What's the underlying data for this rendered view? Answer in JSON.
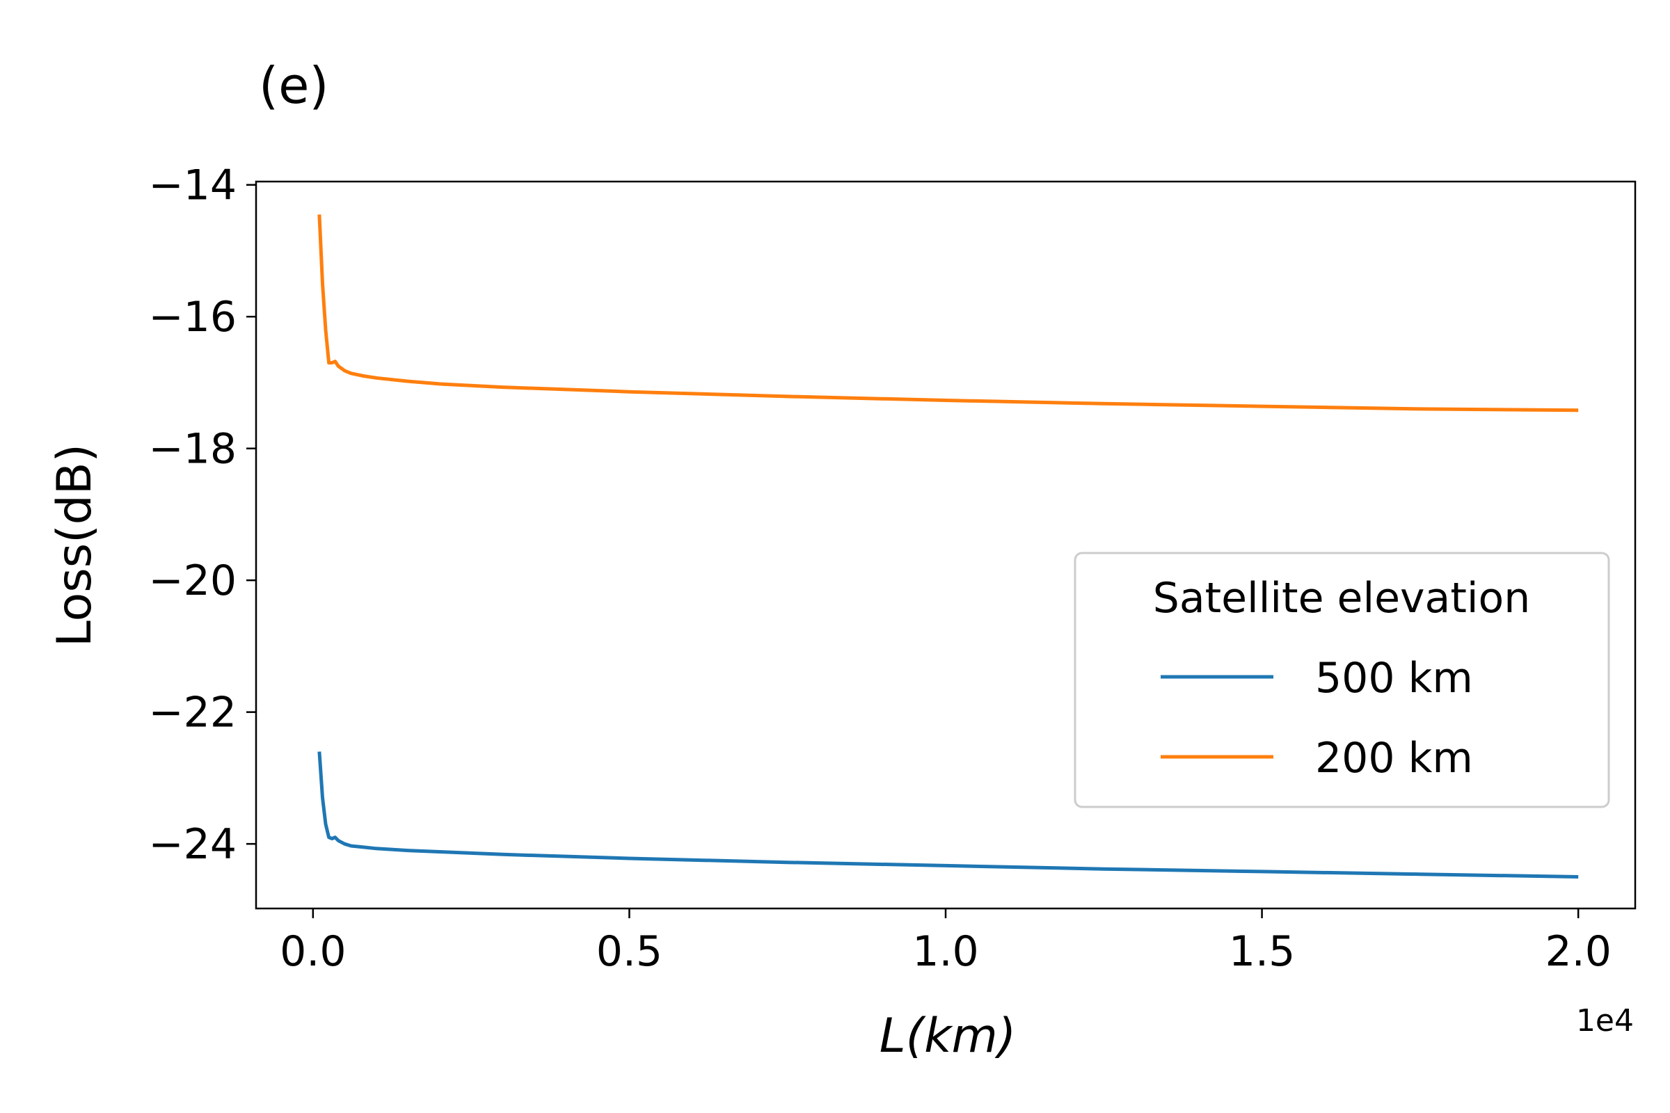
{
  "panel_label": "(e)",
  "chart_data": {
    "type": "line",
    "xlabel": "L(km)",
    "ylabel": "Loss(dB)",
    "x_offset_label": "1e4",
    "xlim": [
      -0.09,
      2.09
    ],
    "ylim": [
      -24.98,
      -13.95
    ],
    "x_ticks": [
      0.0,
      0.5,
      1.0,
      1.5,
      2.0
    ],
    "x_tick_labels": [
      "0.0",
      "0.5",
      "1.0",
      "1.5",
      "2.0"
    ],
    "y_ticks": [
      -14,
      -16,
      -18,
      -20,
      -22,
      -24
    ],
    "y_tick_labels": [
      "−14",
      "−16",
      "−18",
      "−20",
      "−22",
      "−24"
    ],
    "grid": false,
    "legend": {
      "title": "Satellite elevation",
      "location": "center-right"
    },
    "series": [
      {
        "name": "500 km",
        "color": "#1f77b4",
        "x": [
          0.01,
          0.015,
          0.02,
          0.025,
          0.03,
          0.035,
          0.04,
          0.05,
          0.06,
          0.08,
          0.1,
          0.15,
          0.2,
          0.3,
          0.5,
          0.75,
          1.0,
          1.25,
          1.5,
          1.75,
          2.0
        ],
        "y": [
          -22.6,
          -23.3,
          -23.7,
          -23.9,
          -23.92,
          -23.9,
          -23.95,
          -24.0,
          -24.03,
          -24.05,
          -24.07,
          -24.1,
          -24.12,
          -24.16,
          -24.22,
          -24.28,
          -24.33,
          -24.38,
          -24.42,
          -24.46,
          -24.5
        ]
      },
      {
        "name": "200 km",
        "color": "#ff7f0e",
        "x": [
          0.01,
          0.015,
          0.02,
          0.025,
          0.03,
          0.035,
          0.04,
          0.05,
          0.06,
          0.08,
          0.1,
          0.15,
          0.2,
          0.3,
          0.5,
          0.75,
          1.0,
          1.25,
          1.5,
          1.75,
          2.0
        ],
        "y": [
          -14.45,
          -15.5,
          -16.2,
          -16.7,
          -16.7,
          -16.68,
          -16.75,
          -16.82,
          -16.86,
          -16.9,
          -16.93,
          -16.98,
          -17.02,
          -17.07,
          -17.14,
          -17.21,
          -17.27,
          -17.32,
          -17.36,
          -17.4,
          -17.42
        ]
      }
    ]
  }
}
